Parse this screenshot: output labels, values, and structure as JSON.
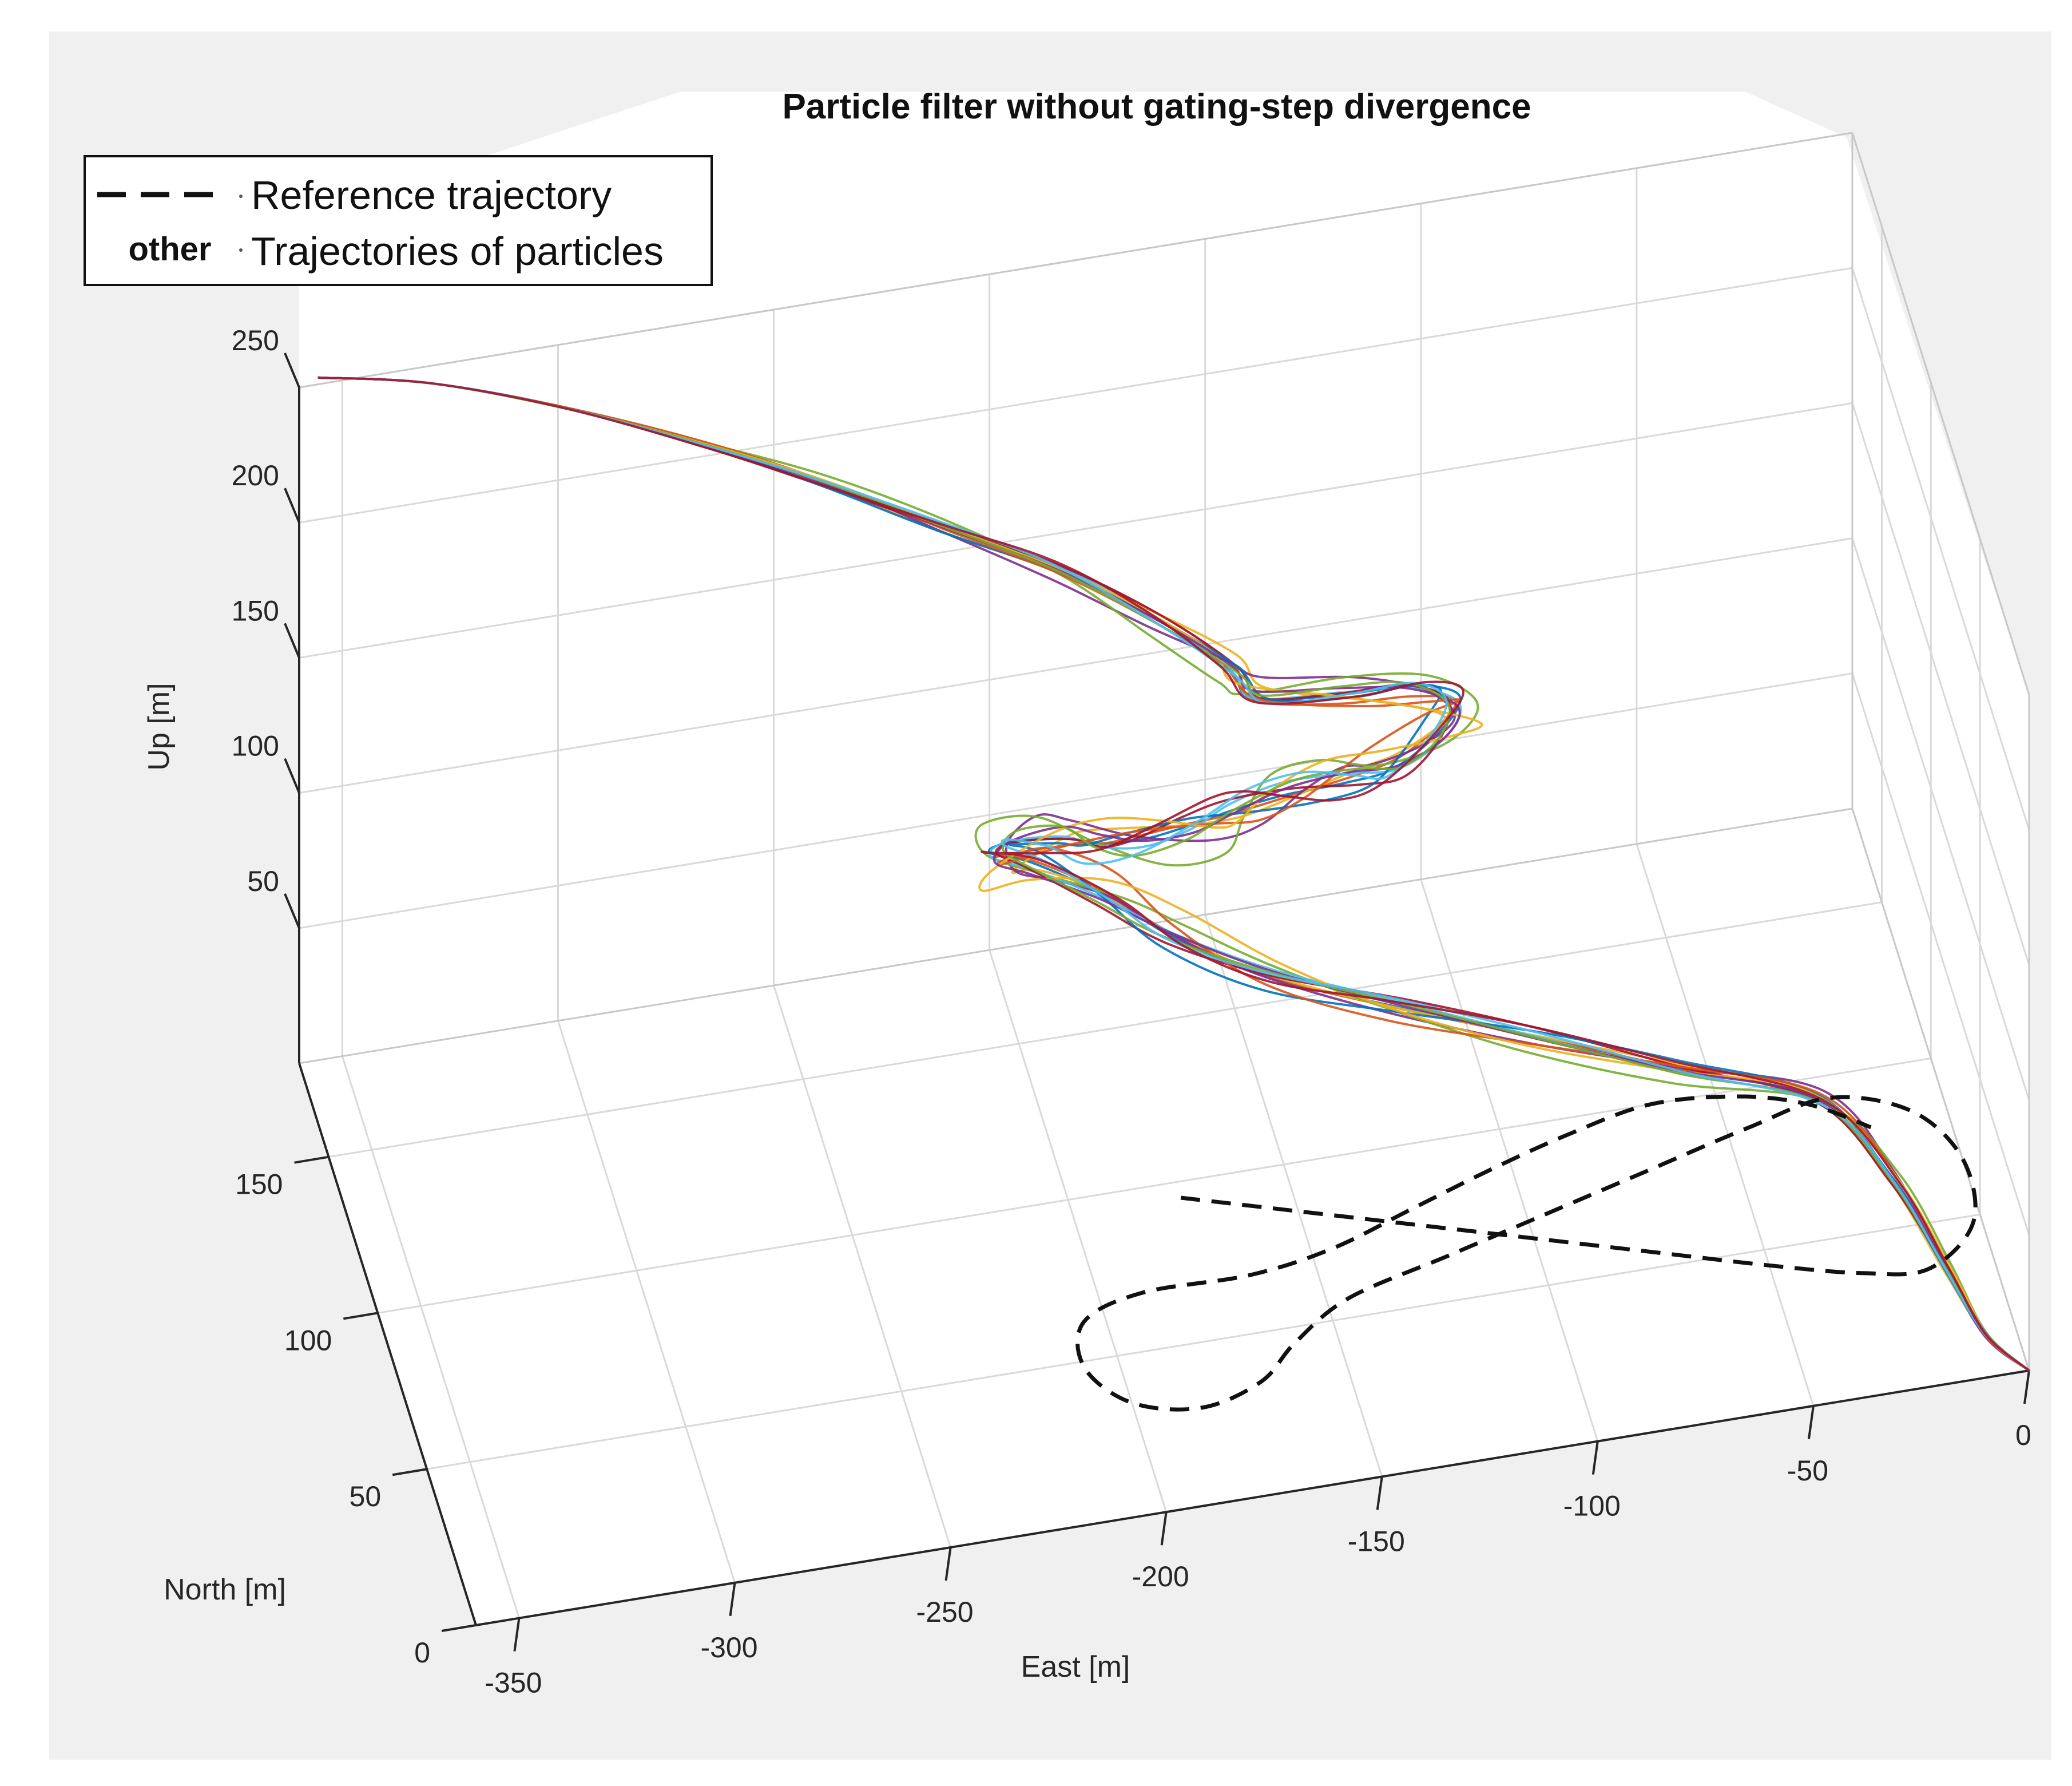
{
  "chart_data": {
    "type": "line3d",
    "title": "Particle filter without gating-step divergence",
    "xlabel": "East [m]",
    "ylabel": "North [m]",
    "zlabel": "Up [m]",
    "xlim": [
      -360,
      0
    ],
    "ylim": [
      0,
      180
    ],
    "zlim": [
      0,
      250
    ],
    "xticks": [
      "-350",
      "-300",
      "-250",
      "-200",
      "-150",
      "-100",
      "-50",
      "0"
    ],
    "yticks": [
      "0",
      "50",
      "100",
      "150"
    ],
    "zticks": [
      "50",
      "100",
      "150",
      "200",
      "250"
    ],
    "grid": true,
    "legend": {
      "location": "top-left",
      "entries": [
        {
          "marker": "- - -",
          "label": "Reference trajectory"
        },
        {
          "marker": "other",
          "label": "Trajectories of particles"
        }
      ]
    },
    "colors": {
      "reference": "#111111",
      "particles": [
        "#0072BD",
        "#D95319",
        "#EDB120",
        "#7E2F8E",
        "#77AC30",
        "#4DBEEE",
        "#A2142F"
      ]
    },
    "reference_series": {
      "name": "Reference trajectory",
      "note": "figure-eight at ground level (Up = 0)",
      "points_east_north_up": [
        [
          -175,
          95,
          0
        ],
        [
          -150,
          85,
          0
        ],
        [
          -125,
          75,
          0
        ],
        [
          -100,
          65,
          0
        ],
        [
          -75,
          55,
          0
        ],
        [
          -50,
          45,
          0
        ],
        [
          -30,
          38,
          0
        ],
        [
          -15,
          36,
          0
        ],
        [
          -2,
          48,
          0
        ],
        [
          0,
          68,
          0
        ],
        [
          -8,
          85,
          0
        ],
        [
          -25,
          93,
          0
        ],
        [
          -45,
          88,
          0
        ],
        [
          -70,
          80,
          0
        ],
        [
          -95,
          72,
          0
        ],
        [
          -120,
          64,
          0
        ],
        [
          -145,
          56,
          0
        ],
        [
          -160,
          45,
          0
        ],
        [
          -170,
          35,
          0
        ],
        [
          -185,
          30,
          0
        ],
        [
          -200,
          35,
          0
        ],
        [
          -208,
          48,
          0
        ],
        [
          -205,
          62,
          0
        ],
        [
          -190,
          68,
          0
        ],
        [
          -165,
          68,
          0
        ],
        [
          -145,
          72,
          0
        ],
        [
          -125,
          80,
          0
        ],
        [
          -105,
          88,
          0
        ],
        [
          -85,
          95,
          0
        ],
        [
          -65,
          100,
          0
        ],
        [
          -45,
          98,
          0
        ],
        [
          -30,
          92,
          0
        ],
        [
          -18,
          82,
          0
        ]
      ]
    },
    "particle_series": {
      "name": "Trajectories of particles",
      "count": 14,
      "note": "bundle descending from high altitude down to ground; values in data units",
      "mean_path_east_north_up": [
        [
          0,
          0,
          0
        ],
        [
          -8,
          8,
          6
        ],
        [
          -14,
          22,
          16
        ],
        [
          -22,
          42,
          28
        ],
        [
          -35,
          62,
          38
        ],
        [
          -65,
          75,
          42
        ],
        [
          -95,
          85,
          50
        ],
        [
          -125,
          95,
          58
        ],
        [
          -152,
          105,
          65
        ],
        [
          -172,
          118,
          70
        ],
        [
          -185,
          130,
          74
        ],
        [
          -198,
          142,
          74
        ],
        [
          -205,
          150,
          70
        ],
        [
          -200,
          160,
          62
        ],
        [
          -188,
          162,
          60
        ],
        [
          -182,
          150,
          70
        ],
        [
          -176,
          130,
          92
        ],
        [
          -168,
          110,
          118
        ],
        [
          -162,
          95,
          140
        ],
        [
          -152,
          84,
          158
        ],
        [
          -140,
          77,
          168
        ],
        [
          -130,
          76,
          170
        ],
        [
          -118,
          82,
          172
        ],
        [
          -112,
          92,
          170
        ],
        [
          -120,
          100,
          168
        ],
        [
          -135,
          104,
          166
        ],
        [
          -155,
          106,
          168
        ],
        [
          -160,
          110,
          175
        ],
        [
          -175,
          120,
          185
        ],
        [
          -195,
          132,
          195
        ],
        [
          -220,
          142,
          206
        ],
        [
          -245,
          152,
          217
        ],
        [
          -270,
          160,
          228
        ],
        [
          -300,
          170,
          238
        ],
        [
          -330,
          178,
          246
        ],
        [
          -355,
          182,
          250
        ]
      ]
    }
  }
}
